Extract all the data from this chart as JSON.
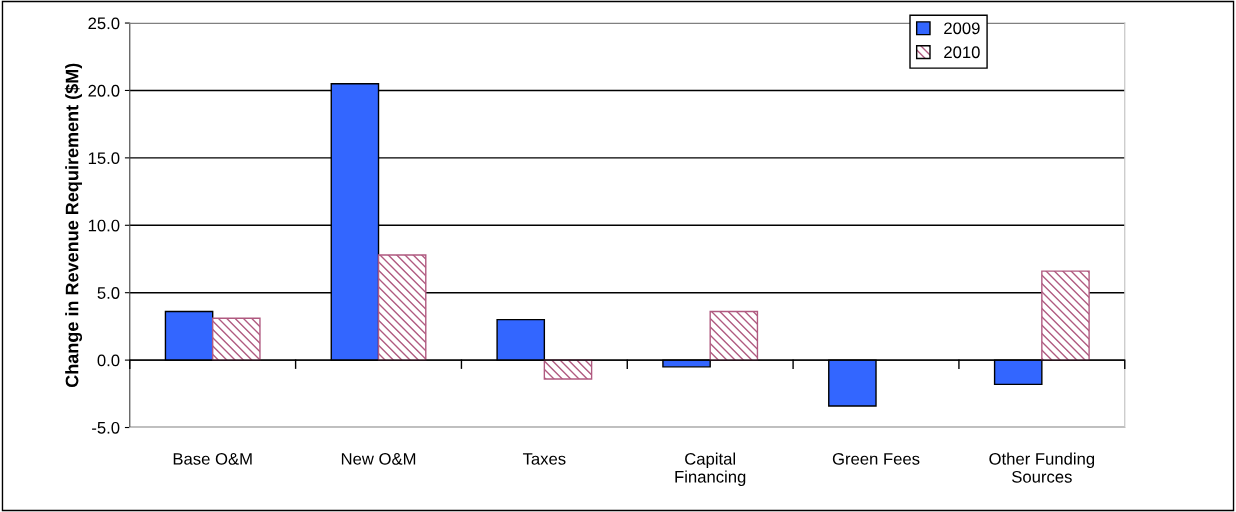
{
  "chart_data": {
    "type": "bar",
    "ylabel": "Change in Revenue Requirement ($M)",
    "categories": [
      "Base O&M",
      "New O&M",
      "Taxes",
      "Capital\nFinancing",
      "Green Fees",
      "Other Funding\nSources"
    ],
    "series": [
      {
        "name": "2009",
        "color": "#3366ff",
        "values": [
          3.6,
          20.5,
          3.0,
          -0.5,
          -3.4,
          -1.8
        ]
      },
      {
        "name": "2010",
        "color": "#b05a80",
        "values": [
          3.1,
          7.8,
          -1.4,
          3.6,
          null,
          6.6
        ]
      }
    ],
    "ylim": [
      -5,
      25
    ],
    "yticks": [
      {
        "value": -5,
        "label": "-5.0"
      },
      {
        "value": 0,
        "label": "0.0"
      },
      {
        "value": 5,
        "label": "5.0"
      },
      {
        "value": 10,
        "label": "10.0"
      },
      {
        "value": 15,
        "label": "15.0"
      },
      {
        "value": 20,
        "label": "20.0"
      },
      {
        "value": 25,
        "label": "25.0"
      }
    ],
    "grid": "y",
    "legend": "top right"
  }
}
